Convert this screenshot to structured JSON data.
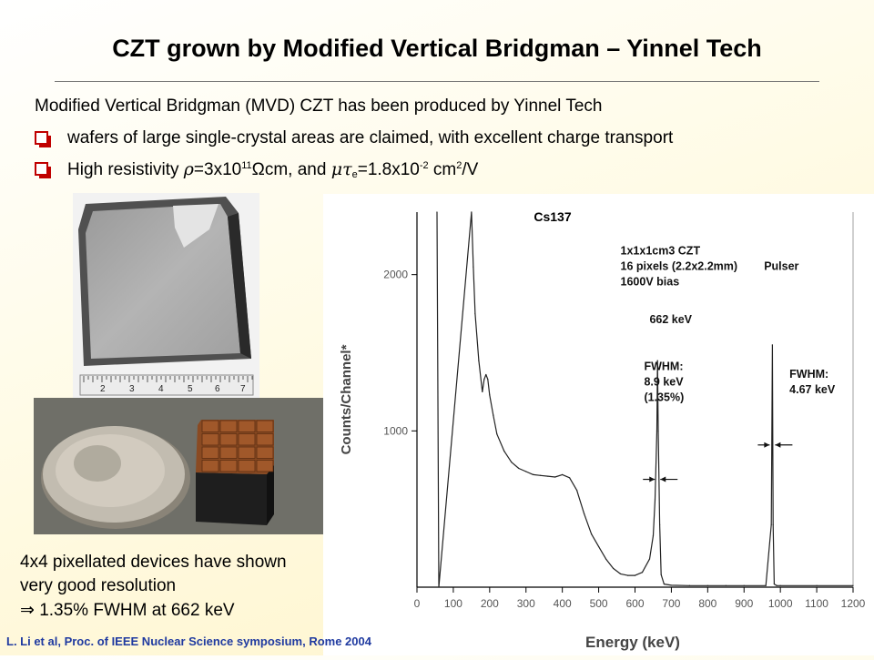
{
  "slide": {
    "title": "CZT grown by Modified Vertical Bridgman – Yinnel Tech",
    "intro": "Modified Vertical Bridgman (MVD) CZT has been produced by Yinnel Tech",
    "bullet1": "wafers of large single-crystal areas are claimed, with excellent charge transport",
    "bullet2": {
      "prefix": "High resistivity ",
      "rho": "ρ",
      "eq1": "=3x10",
      "exp1": "11",
      "omega": "Ω",
      "unit1": "cm,  and ",
      "mutau": "μτ",
      "sub_e": "e",
      "eq2": "=1.8x10",
      "exp2": "-2",
      "unit2": " cm",
      "exp3": "2",
      "unit3": "/V"
    },
    "caption_line1": "4x4 pixellated devices have shown",
    "caption_line2": "very good resolution",
    "caption_line3": "⇒ 1.35% FWHM at 662 keV",
    "reference": "L. Li et al, Proc. of IEEE Nuclear Science symposium, Rome 2004",
    "ruler_numbers": [
      "2",
      "3",
      "4",
      "5",
      "6",
      "7"
    ]
  },
  "chart_data": {
    "type": "line",
    "title": "Cs137",
    "xlabel": "Energy (keV)",
    "ylabel": "Counts/Channel*",
    "xlim": [
      0,
      1200
    ],
    "ylim": [
      0,
      2400
    ],
    "xticks": [
      0,
      100,
      200,
      300,
      400,
      500,
      600,
      700,
      800,
      900,
      1000,
      1100,
      1200
    ],
    "yticks": [
      1000,
      2000
    ],
    "series": [
      {
        "x": [
          55,
          60,
          150,
          155,
          160,
          170,
          180,
          185,
          190,
          195,
          200,
          210,
          220,
          240,
          260,
          280,
          300,
          320,
          340,
          360,
          380,
          400,
          420,
          440,
          460,
          480,
          500,
          520,
          540,
          560,
          580,
          600,
          620,
          640,
          650,
          655,
          660,
          662,
          664,
          668,
          672,
          680,
          700,
          750,
          800,
          850,
          900,
          960,
          975,
          978,
          980,
          983,
          990,
          1000,
          1100,
          1200
        ],
        "y": [
          2400,
          0,
          2400,
          2050,
          1750,
          1450,
          1250,
          1330,
          1360,
          1330,
          1230,
          1100,
          980,
          870,
          800,
          760,
          740,
          720,
          715,
          710,
          705,
          720,
          700,
          620,
          470,
          340,
          260,
          180,
          120,
          85,
          75,
          75,
          95,
          180,
          330,
          560,
          1000,
          1450,
          1000,
          400,
          80,
          20,
          12,
          10,
          10,
          10,
          10,
          10,
          400,
          1550,
          400,
          20,
          10,
          10,
          10,
          10
        ]
      }
    ],
    "annotations": [
      {
        "text": "1x1x1cm3 CZT",
        "x": 560,
        "y": 2130
      },
      {
        "text": "16 pixels (2.2x2.2mm)",
        "x": 560,
        "y": 2030
      },
      {
        "text": "1600V bias",
        "x": 560,
        "y": 1930
      },
      {
        "text": "662 keV",
        "x": 640,
        "y": 1690
      },
      {
        "text": "FWHM:",
        "x": 625,
        "y": 1390
      },
      {
        "text": "8.9 keV",
        "x": 625,
        "y": 1290
      },
      {
        "text": "(1.35%)",
        "x": 625,
        "y": 1190
      },
      {
        "text": "Pulser",
        "x": 955,
        "y": 2030
      },
      {
        "text": "FWHM:",
        "x": 1025,
        "y": 1340
      },
      {
        "text": "4.67 keV",
        "x": 1025,
        "y": 1240
      }
    ],
    "arrows": [
      {
        "x": 662,
        "y": 690
      },
      {
        "x": 978,
        "y": 910
      }
    ],
    "grid": false,
    "legend": "none"
  }
}
